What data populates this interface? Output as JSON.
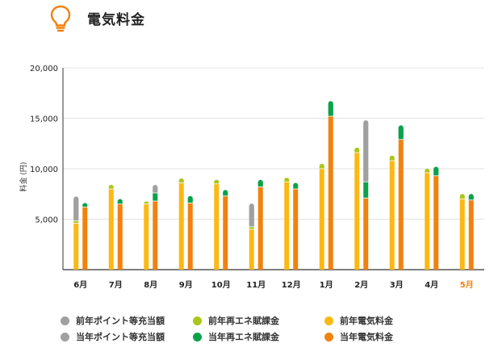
{
  "header": {
    "title": "電気料金",
    "icon": "lightbulb-icon"
  },
  "colors": {
    "prev_point": "#a0a0a0",
    "curr_point": "#a0a0a0",
    "prev_renew": "#a8c81a",
    "curr_renew": "#0ba24a",
    "prev_elec": "#fcb813",
    "curr_elec": "#f08210",
    "highlight_month": "#f08210",
    "icon": "#f08210"
  },
  "legend": [
    {
      "key": "prev_point",
      "label": "前年ポイント等充当額"
    },
    {
      "key": "curr_point",
      "label": "当年ポイント等充当額"
    },
    {
      "key": "prev_renew",
      "label": "前年再エネ賦課金"
    },
    {
      "key": "curr_renew",
      "label": "当年再エネ賦課金"
    },
    {
      "key": "prev_elec",
      "label": "前年電気料金"
    },
    {
      "key": "curr_elec",
      "label": "当年電気料金"
    }
  ],
  "chart_data": {
    "type": "bar",
    "stacked": true,
    "grouped": true,
    "title": "",
    "ylabel": "料金 (円)",
    "xlabel": "",
    "ylim": [
      0,
      20000
    ],
    "yticks": [
      5000,
      10000,
      15000,
      20000
    ],
    "ytick_labels": [
      "5,000",
      "10,000",
      "15,000",
      "20,000"
    ],
    "grid": true,
    "legend_position": "bottom",
    "categories": [
      "6月",
      "7月",
      "8月",
      "9月",
      "10月",
      "11月",
      "12月",
      "1月",
      "2月",
      "3月",
      "4月",
      "5月"
    ],
    "highlight_category": "5月",
    "groups": [
      {
        "name": "前年",
        "series": [
          {
            "name": "前年電気料金",
            "color_key": "prev_elec",
            "values": [
              4600,
              8000,
              6500,
              8600,
              8500,
              4000,
              8700,
              10000,
              11600,
              10800,
              9600,
              7000
            ]
          },
          {
            "name": "前年再エネ賦課金",
            "color_key": "prev_renew",
            "values": [
              250,
              400,
              250,
              450,
              400,
              250,
              400,
              500,
              500,
              500,
              400,
              500
            ]
          },
          {
            "name": "前年ポイント等充当額",
            "color_key": "prev_point",
            "values": [
              2400,
              0,
              0,
              0,
              0,
              2300,
              0,
              0,
              0,
              0,
              0,
              0
            ]
          }
        ]
      },
      {
        "name": "当年",
        "series": [
          {
            "name": "当年電気料金",
            "color_key": "curr_elec",
            "values": [
              6200,
              6500,
              6800,
              6600,
              7300,
              8200,
              8000,
              15200,
              7100,
              12900,
              9300,
              6900
            ]
          },
          {
            "name": "当年再エネ賦課金",
            "color_key": "curr_renew",
            "values": [
              400,
              500,
              800,
              700,
              600,
              700,
              600,
              1500,
              1600,
              1400,
              900,
              600
            ]
          },
          {
            "name": "当年ポイント等充当額",
            "color_key": "curr_point",
            "values": [
              0,
              0,
              800,
              0,
              0,
              0,
              0,
              0,
              6100,
              0,
              0,
              0
            ]
          }
        ]
      }
    ]
  }
}
